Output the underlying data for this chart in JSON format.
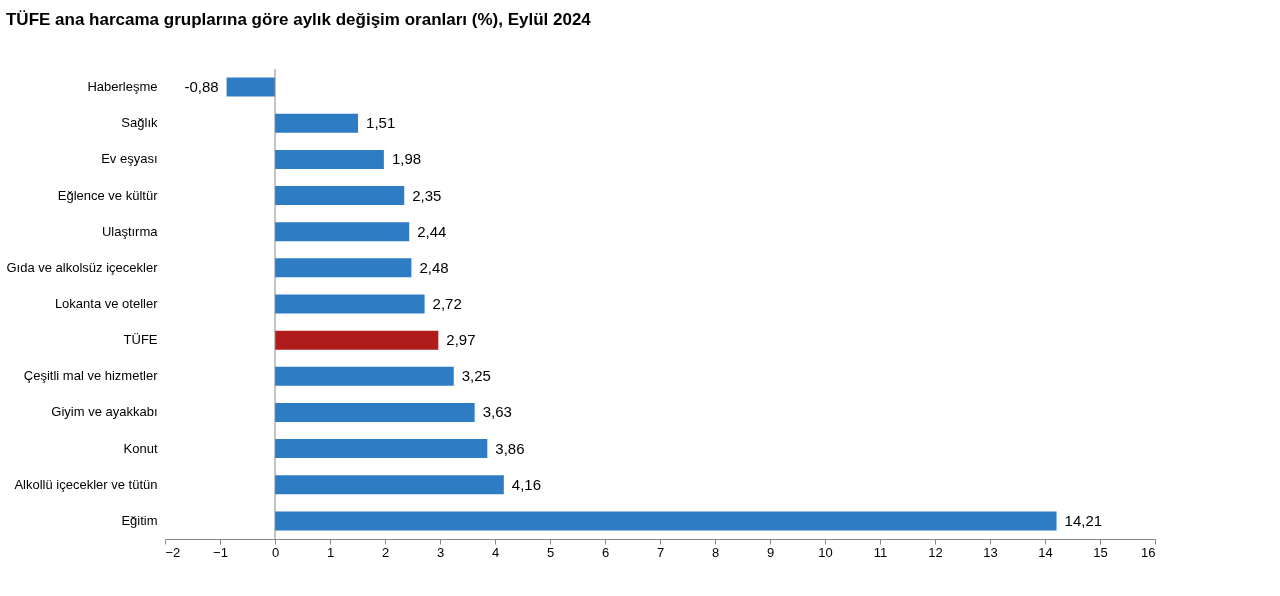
{
  "chart_data": {
    "type": "bar",
    "orientation": "horizontal",
    "title": "TÜFE ana harcama gruplarına göre aylık değişim oranları (%), Eylül 2024",
    "categories": [
      "Haberleşme",
      "Sağlık",
      "Ev eşyası",
      "Eğlence ve kültür",
      "Ulaştırma",
      "Gıda ve alkolsüz içecekler",
      "Lokanta ve oteller",
      "TÜFE",
      "Çeşitli mal ve hizmetler",
      "Giyim ve ayakkabı",
      "Konut",
      "Alkollü içecekler ve tütün",
      "Eğitim"
    ],
    "values": [
      -0.88,
      1.51,
      1.98,
      2.35,
      2.44,
      2.48,
      2.72,
      2.97,
      3.25,
      3.63,
      3.86,
      4.16,
      14.21
    ],
    "value_labels": [
      "-0,88",
      "1,51",
      "1,98",
      "2,35",
      "2,44",
      "2,48",
      "2,72",
      "2,97",
      "3,25",
      "3,63",
      "3,86",
      "4,16",
      "14,21"
    ],
    "colors": [
      "#2e7dc4",
      "#2e7dc4",
      "#2e7dc4",
      "#2e7dc4",
      "#2e7dc4",
      "#2e7dc4",
      "#2e7dc4",
      "#b01c1c",
      "#2e7dc4",
      "#2e7dc4",
      "#2e7dc4",
      "#2e7dc4",
      "#2e7dc4"
    ],
    "xlim": [
      -2,
      16
    ],
    "xticks": [
      -2,
      -1,
      0,
      1,
      2,
      3,
      4,
      5,
      6,
      7,
      8,
      9,
      10,
      11,
      12,
      13,
      14,
      15,
      16
    ],
    "ref_lines": [
      {
        "axis": "x",
        "value": 0,
        "color": "#888888"
      }
    ],
    "grid": false
  }
}
